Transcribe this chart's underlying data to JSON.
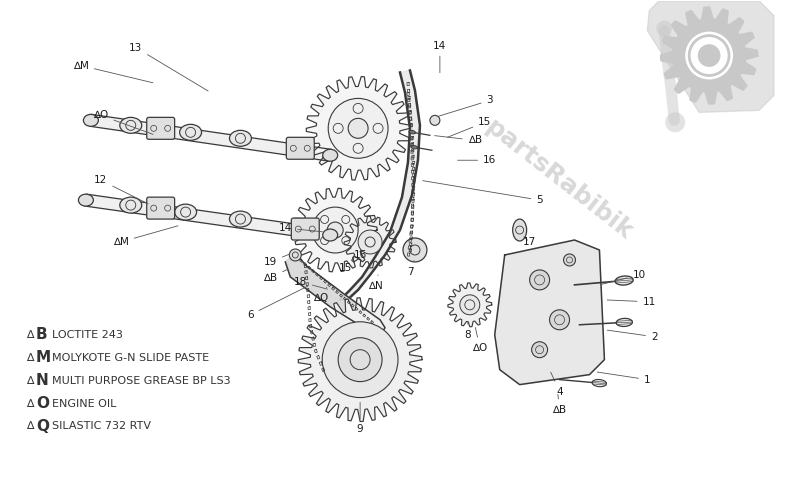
{
  "background_color": "#ffffff",
  "line_color": "#3a3a3a",
  "watermark_color": "#c8c8c8",
  "legend_items": [
    {
      "sym": "∆B",
      "label": "LOCTITE 243"
    },
    {
      "sym": "∆M",
      "label": "MOLYKOTE G-N SLIDE PASTE"
    },
    {
      "sym": "∆N",
      "label": "MULTI PURPOSE GREASE BP LS3"
    },
    {
      "sym": "∆O",
      "label": "ENGINE OIL"
    },
    {
      "sym": "∆Q",
      "label": "SILASTIC 732 RTV"
    }
  ],
  "fig_width": 8.0,
  "fig_height": 4.9,
  "dpi": 100
}
